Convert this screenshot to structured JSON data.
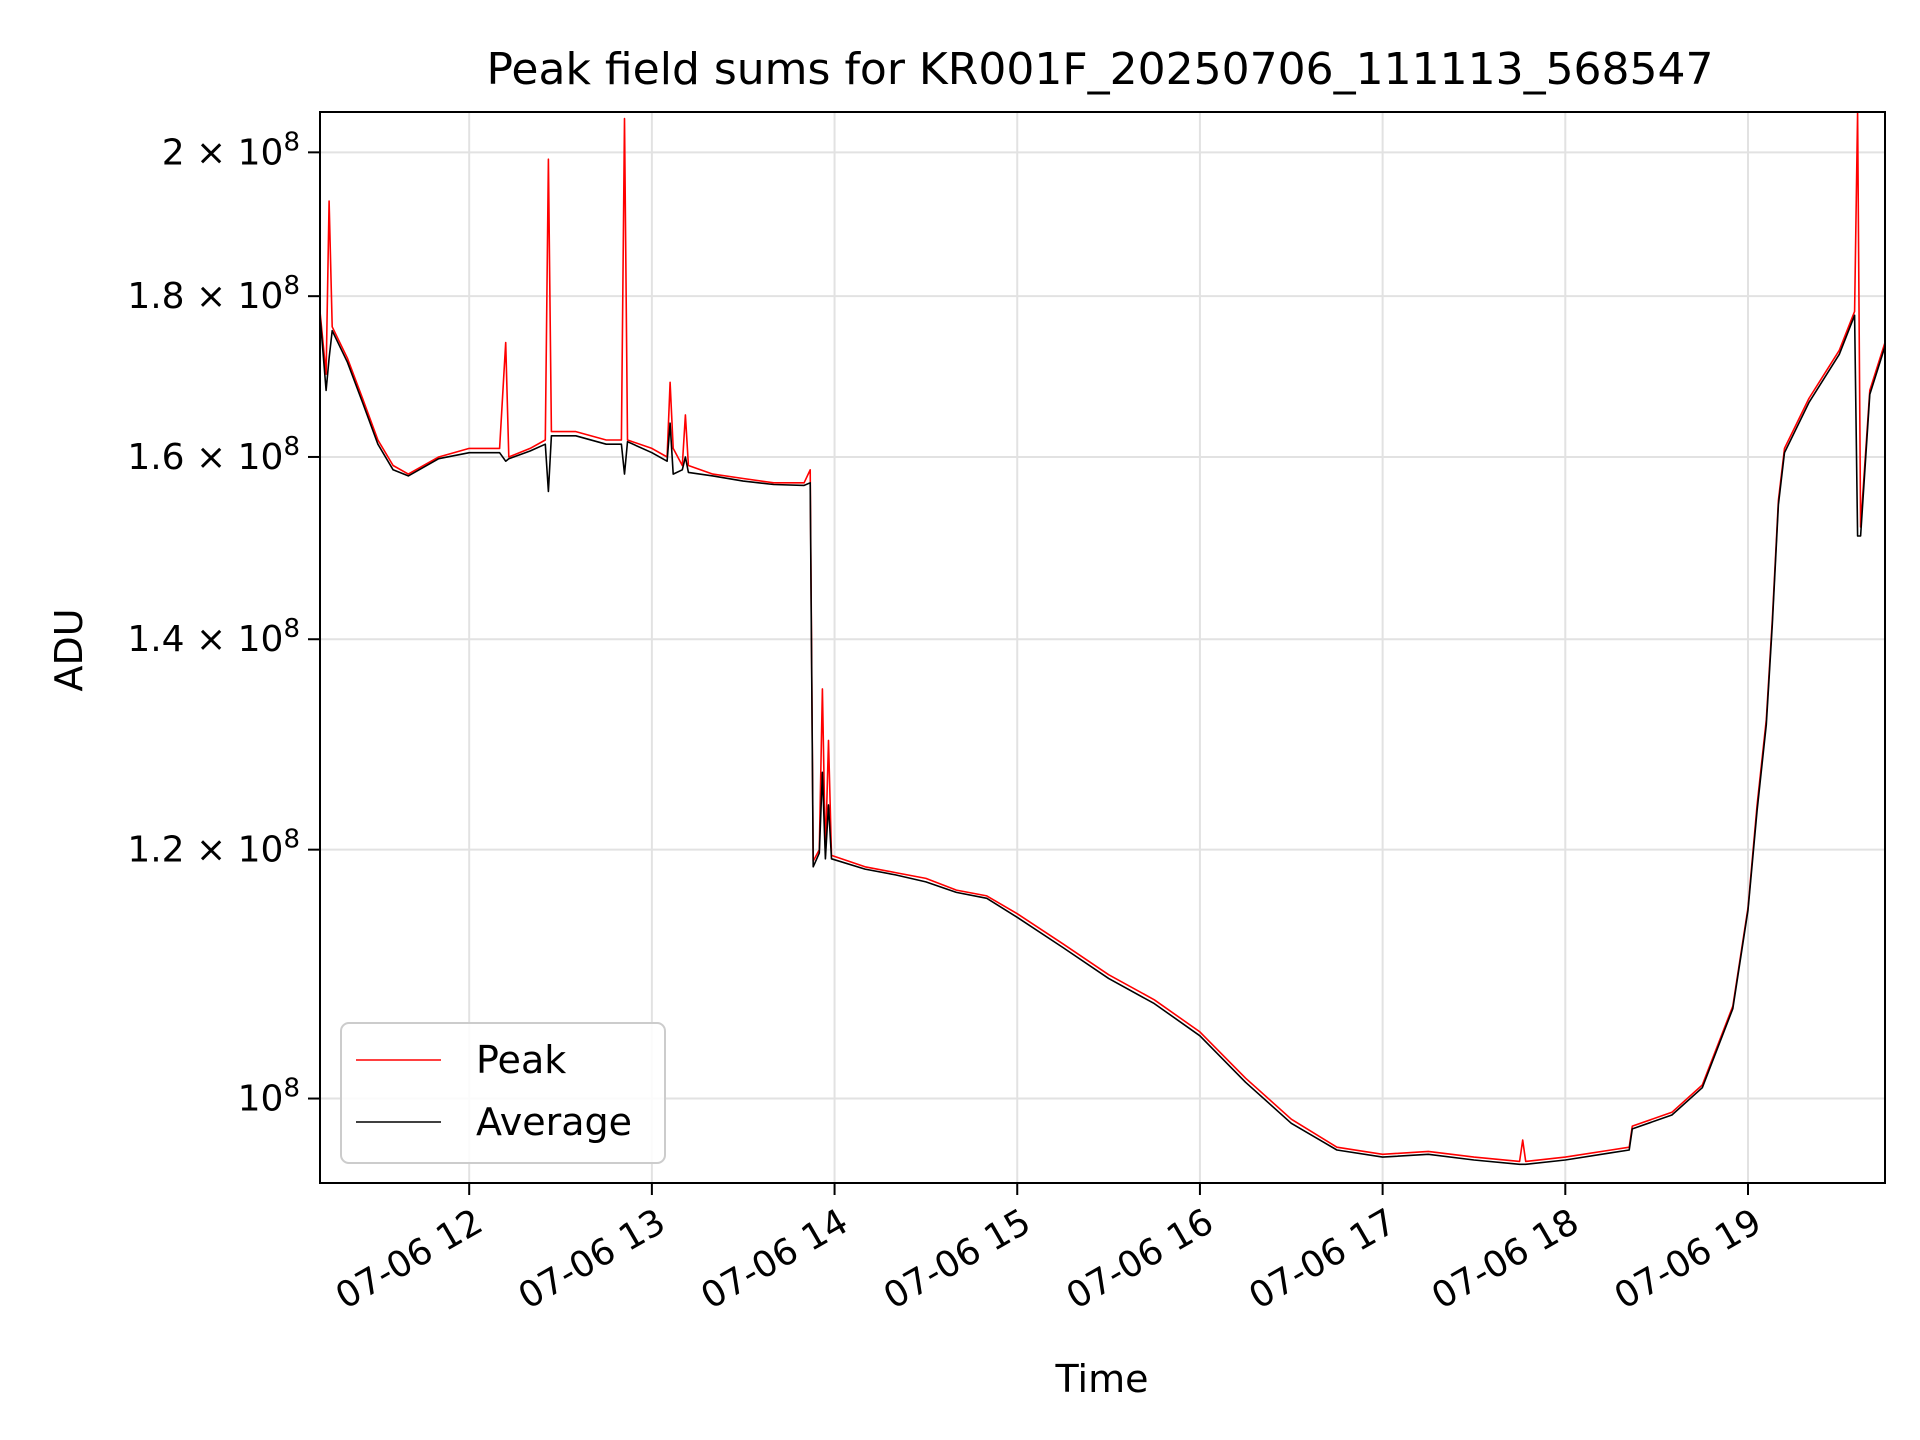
{
  "chart_data": {
    "type": "line",
    "title": "Peak field sums for KR001F_20250706_111113_568547",
    "xlabel": "Time",
    "ylabel": "ADU",
    "yscale": "log",
    "grid": true,
    "legend_position": "lower-left",
    "xlim": [
      "2025-07-06T11:11",
      "2025-07-06T19:45"
    ],
    "ylim": [
      94000000,
      206000000
    ],
    "x_ticks": [
      {
        "t": "2025-07-06T12:00",
        "label": "07-06 12"
      },
      {
        "t": "2025-07-06T13:00",
        "label": "07-06 13"
      },
      {
        "t": "2025-07-06T14:00",
        "label": "07-06 14"
      },
      {
        "t": "2025-07-06T15:00",
        "label": "07-06 15"
      },
      {
        "t": "2025-07-06T16:00",
        "label": "07-06 16"
      },
      {
        "t": "2025-07-06T17:00",
        "label": "07-06 17"
      },
      {
        "t": "2025-07-06T18:00",
        "label": "07-06 18"
      },
      {
        "t": "2025-07-06T19:00",
        "label": "07-06 19"
      }
    ],
    "y_ticks": [
      {
        "v": 100000000,
        "base": "10",
        "exp": "8"
      },
      {
        "v": 120000000,
        "mant": "1.2",
        "base": "10",
        "exp": "8"
      },
      {
        "v": 140000000,
        "mant": "1.4",
        "base": "10",
        "exp": "8"
      },
      {
        "v": 160000000,
        "mant": "1.6",
        "base": "10",
        "exp": "8"
      },
      {
        "v": 180000000,
        "mant": "1.8",
        "base": "10",
        "exp": "8"
      },
      {
        "v": 200000000,
        "mant": "2",
        "base": "10",
        "exp": "8"
      }
    ],
    "series": [
      {
        "name": "Peak",
        "color": "#ff0000",
        "points": [
          [
            "2025-07-06T11:11",
            178000000
          ],
          [
            "2025-07-06T11:13",
            170000000
          ],
          [
            "2025-07-06T11:14",
            193000000
          ],
          [
            "2025-07-06T11:15",
            176000000
          ],
          [
            "2025-07-06T11:20",
            172000000
          ],
          [
            "2025-07-06T11:25",
            167000000
          ],
          [
            "2025-07-06T11:30",
            162000000
          ],
          [
            "2025-07-06T11:35",
            159000000
          ],
          [
            "2025-07-06T11:40",
            158000000
          ],
          [
            "2025-07-06T11:50",
            160000000
          ],
          [
            "2025-07-06T12:00",
            161000000
          ],
          [
            "2025-07-06T12:10",
            161000000
          ],
          [
            "2025-07-06T12:12",
            174000000
          ],
          [
            "2025-07-06T12:13",
            160000000
          ],
          [
            "2025-07-06T12:20",
            161000000
          ],
          [
            "2025-07-06T12:25",
            162000000
          ],
          [
            "2025-07-06T12:26",
            199000000
          ],
          [
            "2025-07-06T12:27",
            163000000
          ],
          [
            "2025-07-06T12:35",
            163000000
          ],
          [
            "2025-07-06T12:45",
            162000000
          ],
          [
            "2025-07-06T12:50",
            162000000
          ],
          [
            "2025-07-06T12:51",
            205000000
          ],
          [
            "2025-07-06T12:52",
            162000000
          ],
          [
            "2025-07-06T13:00",
            161000000
          ],
          [
            "2025-07-06T13:05",
            160000000
          ],
          [
            "2025-07-06T13:06",
            169000000
          ],
          [
            "2025-07-06T13:07",
            161000000
          ],
          [
            "2025-07-06T13:10",
            159000000
          ],
          [
            "2025-07-06T13:11",
            165000000
          ],
          [
            "2025-07-06T13:12",
            159000000
          ],
          [
            "2025-07-06T13:20",
            158000000
          ],
          [
            "2025-07-06T13:30",
            157500000
          ],
          [
            "2025-07-06T13:40",
            157000000
          ],
          [
            "2025-07-06T13:50",
            157000000
          ],
          [
            "2025-07-06T13:52",
            158500000
          ],
          [
            "2025-07-06T13:53",
            119000000
          ],
          [
            "2025-07-06T13:55",
            120000000
          ],
          [
            "2025-07-06T13:56",
            135000000
          ],
          [
            "2025-07-06T13:57",
            119500000
          ],
          [
            "2025-07-06T13:58",
            130000000
          ],
          [
            "2025-07-06T13:59",
            119500000
          ],
          [
            "2025-07-06T14:10",
            118500000
          ],
          [
            "2025-07-06T14:20",
            118000000
          ],
          [
            "2025-07-06T14:30",
            117500000
          ],
          [
            "2025-07-06T14:40",
            116500000
          ],
          [
            "2025-07-06T14:50",
            116000000
          ],
          [
            "2025-07-06T15:00",
            114500000
          ],
          [
            "2025-07-06T15:15",
            112000000
          ],
          [
            "2025-07-06T15:30",
            109500000
          ],
          [
            "2025-07-06T15:45",
            107500000
          ],
          [
            "2025-07-06T16:00",
            105000000
          ],
          [
            "2025-07-06T16:15",
            101500000
          ],
          [
            "2025-07-06T16:30",
            98500000
          ],
          [
            "2025-07-06T16:45",
            96500000
          ],
          [
            "2025-07-06T17:00",
            96000000
          ],
          [
            "2025-07-06T17:15",
            96200000
          ],
          [
            "2025-07-06T17:30",
            95800000
          ],
          [
            "2025-07-06T17:45",
            95500000
          ],
          [
            "2025-07-06T17:46",
            97000000
          ],
          [
            "2025-07-06T17:47",
            95500000
          ],
          [
            "2025-07-06T18:00",
            95800000
          ],
          [
            "2025-07-06T18:15",
            96300000
          ],
          [
            "2025-07-06T18:21",
            96500000
          ],
          [
            "2025-07-06T18:22",
            98000000
          ],
          [
            "2025-07-06T18:35",
            99000000
          ],
          [
            "2025-07-06T18:45",
            101000000
          ],
          [
            "2025-07-06T18:55",
            107000000
          ],
          [
            "2025-07-06T19:00",
            115000000
          ],
          [
            "2025-07-06T19:03",
            124000000
          ],
          [
            "2025-07-06T19:06",
            132000000
          ],
          [
            "2025-07-06T19:08",
            142000000
          ],
          [
            "2025-07-06T19:10",
            155000000
          ],
          [
            "2025-07-06T19:12",
            161000000
          ],
          [
            "2025-07-06T19:20",
            167000000
          ],
          [
            "2025-07-06T19:30",
            173000000
          ],
          [
            "2025-07-06T19:35",
            178000000
          ],
          [
            "2025-07-06T19:36",
            206000000
          ],
          [
            "2025-07-06T19:37",
            152000000
          ],
          [
            "2025-07-06T19:40",
            168000000
          ],
          [
            "2025-07-06T19:45",
            174000000
          ]
        ]
      },
      {
        "name": "Average",
        "color": "#000000",
        "points": [
          [
            "2025-07-06T11:11",
            177500000
          ],
          [
            "2025-07-06T11:13",
            168000000
          ],
          [
            "2025-07-06T11:14",
            172000000
          ],
          [
            "2025-07-06T11:15",
            175500000
          ],
          [
            "2025-07-06T11:20",
            171500000
          ],
          [
            "2025-07-06T11:25",
            166500000
          ],
          [
            "2025-07-06T11:30",
            161500000
          ],
          [
            "2025-07-06T11:35",
            158500000
          ],
          [
            "2025-07-06T11:40",
            157800000
          ],
          [
            "2025-07-06T11:50",
            159800000
          ],
          [
            "2025-07-06T12:00",
            160500000
          ],
          [
            "2025-07-06T12:10",
            160500000
          ],
          [
            "2025-07-06T12:12",
            159500000
          ],
          [
            "2025-07-06T12:13",
            159800000
          ],
          [
            "2025-07-06T12:20",
            160700000
          ],
          [
            "2025-07-06T12:25",
            161500000
          ],
          [
            "2025-07-06T12:26",
            156000000
          ],
          [
            "2025-07-06T12:27",
            162500000
          ],
          [
            "2025-07-06T12:35",
            162500000
          ],
          [
            "2025-07-06T12:45",
            161500000
          ],
          [
            "2025-07-06T12:50",
            161500000
          ],
          [
            "2025-07-06T12:51",
            158000000
          ],
          [
            "2025-07-06T12:52",
            161800000
          ],
          [
            "2025-07-06T13:00",
            160500000
          ],
          [
            "2025-07-06T13:05",
            159500000
          ],
          [
            "2025-07-06T13:06",
            164000000
          ],
          [
            "2025-07-06T13:07",
            158000000
          ],
          [
            "2025-07-06T13:10",
            158500000
          ],
          [
            "2025-07-06T13:11",
            160000000
          ],
          [
            "2025-07-06T13:12",
            158200000
          ],
          [
            "2025-07-06T13:20",
            157800000
          ],
          [
            "2025-07-06T13:30",
            157200000
          ],
          [
            "2025-07-06T13:40",
            156800000
          ],
          [
            "2025-07-06T13:50",
            156700000
          ],
          [
            "2025-07-06T13:52",
            157000000
          ],
          [
            "2025-07-06T13:53",
            118500000
          ],
          [
            "2025-07-06T13:55",
            119700000
          ],
          [
            "2025-07-06T13:56",
            127000000
          ],
          [
            "2025-07-06T13:57",
            119200000
          ],
          [
            "2025-07-06T13:58",
            124000000
          ],
          [
            "2025-07-06T13:59",
            119200000
          ],
          [
            "2025-07-06T14:10",
            118300000
          ],
          [
            "2025-07-06T14:20",
            117800000
          ],
          [
            "2025-07-06T14:30",
            117200000
          ],
          [
            "2025-07-06T14:40",
            116300000
          ],
          [
            "2025-07-06T14:50",
            115800000
          ],
          [
            "2025-07-06T15:00",
            114200000
          ],
          [
            "2025-07-06T15:15",
            111700000
          ],
          [
            "2025-07-06T15:30",
            109200000
          ],
          [
            "2025-07-06T15:45",
            107200000
          ],
          [
            "2025-07-06T16:00",
            104700000
          ],
          [
            "2025-07-06T16:15",
            101200000
          ],
          [
            "2025-07-06T16:30",
            98200000
          ],
          [
            "2025-07-06T16:45",
            96300000
          ],
          [
            "2025-07-06T17:00",
            95800000
          ],
          [
            "2025-07-06T17:15",
            96000000
          ],
          [
            "2025-07-06T17:30",
            95600000
          ],
          [
            "2025-07-06T17:45",
            95300000
          ],
          [
            "2025-07-06T17:46",
            95300000
          ],
          [
            "2025-07-06T17:47",
            95300000
          ],
          [
            "2025-07-06T18:00",
            95600000
          ],
          [
            "2025-07-06T18:15",
            96100000
          ],
          [
            "2025-07-06T18:21",
            96300000
          ],
          [
            "2025-07-06T18:22",
            97800000
          ],
          [
            "2025-07-06T18:35",
            98800000
          ],
          [
            "2025-07-06T18:45",
            100800000
          ],
          [
            "2025-07-06T18:55",
            106800000
          ],
          [
            "2025-07-06T19:00",
            114800000
          ],
          [
            "2025-07-06T19:03",
            123500000
          ],
          [
            "2025-07-06T19:06",
            131500000
          ],
          [
            "2025-07-06T19:08",
            141500000
          ],
          [
            "2025-07-06T19:10",
            154500000
          ],
          [
            "2025-07-06T19:12",
            160500000
          ],
          [
            "2025-07-06T19:20",
            166500000
          ],
          [
            "2025-07-06T19:30",
            172500000
          ],
          [
            "2025-07-06T19:35",
            177500000
          ],
          [
            "2025-07-06T19:36",
            151000000
          ],
          [
            "2025-07-06T19:37",
            151000000
          ],
          [
            "2025-07-06T19:40",
            167500000
          ],
          [
            "2025-07-06T19:45",
            173500000
          ]
        ]
      }
    ]
  }
}
